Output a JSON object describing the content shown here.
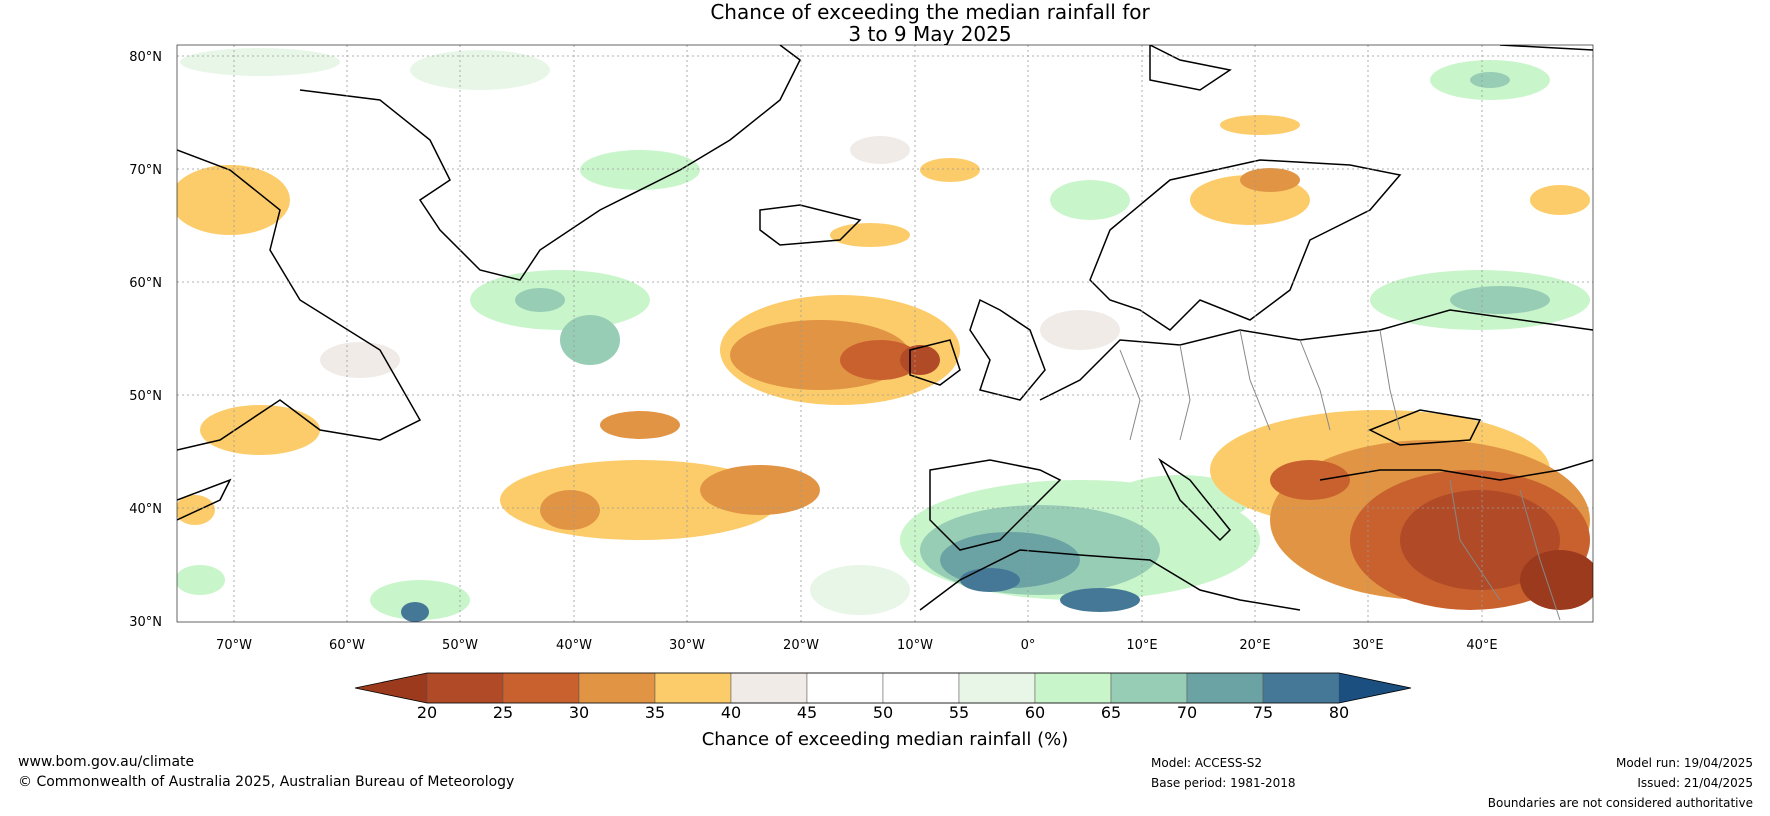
{
  "title": {
    "line1": "Chance of exceeding the median rainfall for",
    "line2": "3 to 9 May 2025"
  },
  "map": {
    "lat_labels": [
      "80°N",
      "70°N",
      "60°N",
      "50°N",
      "40°N",
      "30°N"
    ],
    "lon_labels": [
      "70°W",
      "60°W",
      "50°W",
      "40°W",
      "30°W",
      "20°W",
      "10°W",
      "0°",
      "10°E",
      "20°E",
      "30°E",
      "40°E"
    ],
    "region": "North Atlantic and Europe, 30°N–80°N, 75°W–50°E"
  },
  "colorbar": {
    "label": "Chance of exceeding median rainfall (%)",
    "ticks": [
      "20",
      "25",
      "30",
      "35",
      "40",
      "45",
      "50",
      "55",
      "60",
      "65",
      "70",
      "75",
      "80"
    ],
    "colors": [
      "#9b3a1c",
      "#b14a26",
      "#c8612e",
      "#e19544",
      "#fdcc6a",
      "#f0ebe6",
      "#ffffff",
      "#ffffff",
      "#e8f6e8",
      "#c9f5cb",
      "#97cdb5",
      "#6ba3a5",
      "#457896",
      "#1a4f80"
    ]
  },
  "footer": {
    "website": "www.bom.gov.au/climate",
    "copyright": "© Commonwealth of Australia 2025, Australian Bureau of Meteorology",
    "model": "Model: ACCESS-S2",
    "base_period": "Base period: 1981-2018",
    "model_run": "Model run: 19/04/2025",
    "issued": "Issued: 21/04/2025",
    "disclaimer": "Boundaries are not considered authoritative"
  }
}
